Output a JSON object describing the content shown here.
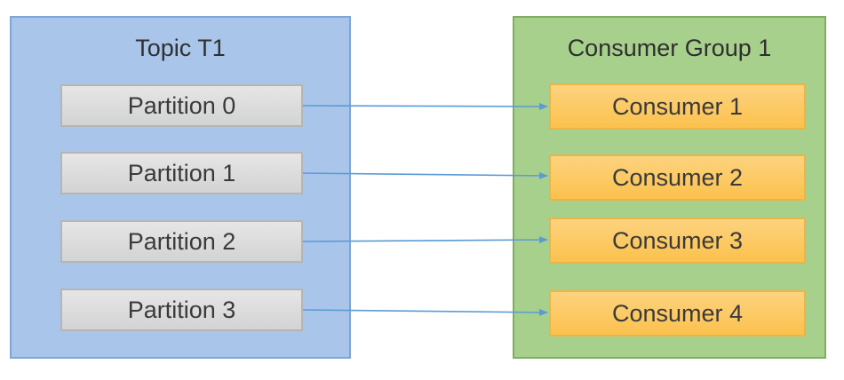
{
  "topic": {
    "title": "Topic T1",
    "partitions": [
      "Partition 0",
      "Partition 1",
      "Partition 2",
      "Partition 3"
    ]
  },
  "consumer_group": {
    "title": "Consumer Group 1",
    "consumers": [
      "Consumer 1",
      "Consumer 2",
      "Consumer 3",
      "Consumer 4"
    ]
  },
  "colors": {
    "topic_fill": "#a9c6ea",
    "consumer_group_fill": "#a8d08d",
    "partition_fill": "#d9d9d9",
    "consumer_fill": "#fcc85e",
    "arrow": "#5b9bd5"
  }
}
